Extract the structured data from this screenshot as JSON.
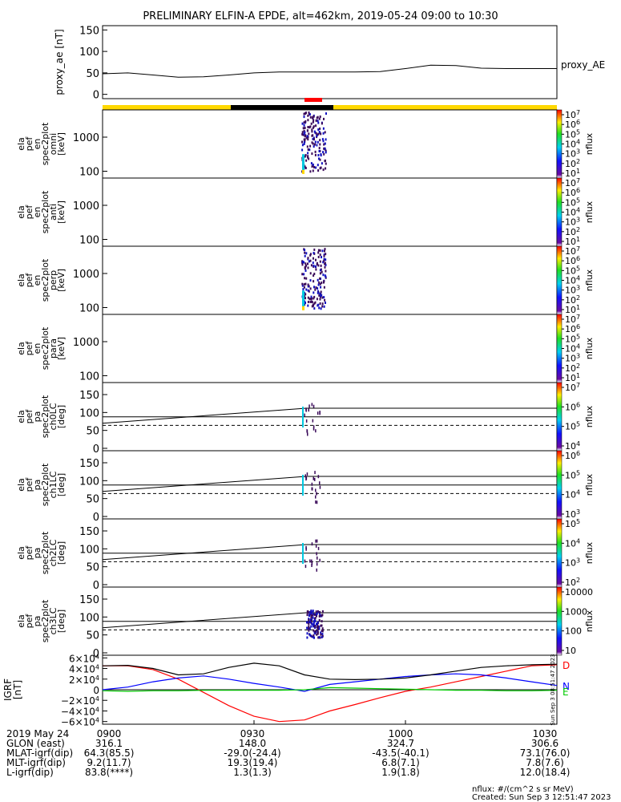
{
  "title": "PRELIMINARY ELFIN-A EPDE, alt=462km, 2019-05-24 09:00 to 10:30",
  "chart_data": [
    {
      "type": "line",
      "ylabel": "proxy_ae [nT]",
      "legend": "proxy_AE",
      "yticks": [
        "150",
        "100",
        "50",
        "0"
      ],
      "ylim": [
        -10,
        160
      ],
      "x": [
        0,
        5,
        10,
        15,
        20,
        25,
        30,
        35,
        40,
        45,
        50,
        55,
        60,
        65,
        70,
        75,
        80,
        85,
        90
      ],
      "values": [
        48,
        50,
        45,
        40,
        41,
        45,
        50,
        52,
        52,
        52,
        52,
        53,
        60,
        68,
        67,
        61,
        60,
        60,
        60
      ]
    },
    {
      "type": "heatmap",
      "ylabel_lines": [
        "ela",
        "pef",
        "en",
        "spec2plot",
        "omni",
        "[keV]"
      ],
      "yticks": [
        "1000",
        "100"
      ],
      "cbar_label": "nflux",
      "cbar_ticks": [
        "10^7",
        "10^6",
        "10^5",
        "10^4",
        "10^3",
        "10^2",
        "10^1"
      ]
    },
    {
      "type": "heatmap",
      "ylabel_lines": [
        "ela",
        "pef",
        "en",
        "spec2plot",
        "anti",
        "[keV]"
      ],
      "yticks": [
        "1000",
        "100"
      ],
      "cbar_label": "nflux",
      "cbar_ticks": [
        "10^7",
        "10^6",
        "10^5",
        "10^4",
        "10^3",
        "10^2",
        "10^1"
      ]
    },
    {
      "type": "heatmap",
      "ylabel_lines": [
        "ela",
        "pef",
        "en",
        "spec2plot",
        "perp",
        "[keV]"
      ],
      "yticks": [
        "1000",
        "100"
      ],
      "cbar_label": "nflux",
      "cbar_ticks": [
        "10^7",
        "10^6",
        "10^5",
        "10^4",
        "10^3",
        "10^2",
        "10^1"
      ]
    },
    {
      "type": "heatmap",
      "ylabel_lines": [
        "ela",
        "pef",
        "en",
        "spec2plot",
        "para",
        "[keV]"
      ],
      "yticks": [
        "1000",
        "100"
      ],
      "cbar_label": "nflux",
      "cbar_ticks": [
        "10^7",
        "10^6",
        "10^5",
        "10^4",
        "10^3",
        "10^2",
        "10^1"
      ]
    },
    {
      "type": "heatmap",
      "ylabel_lines": [
        "ela",
        "pef",
        "pa",
        "spec2plot",
        "ch0LC",
        "[deg]"
      ],
      "yticks": [
        "150",
        "100",
        "50",
        "0"
      ],
      "cbar_label": "nflux",
      "cbar_ticks": [
        "10^7",
        "10^6",
        "10^5",
        "10^4"
      ]
    },
    {
      "type": "heatmap",
      "ylabel_lines": [
        "ela",
        "pef",
        "pa",
        "spec2plot",
        "ch1LC",
        "[deg]"
      ],
      "yticks": [
        "150",
        "100",
        "50",
        "0"
      ],
      "cbar_label": "nflux",
      "cbar_ticks": [
        "10^6",
        "10^5",
        "10^4",
        "10^3"
      ]
    },
    {
      "type": "heatmap",
      "ylabel_lines": [
        "ela",
        "pef",
        "pa",
        "spec2plot",
        "ch2LC",
        "[deg]"
      ],
      "yticks": [
        "150",
        "100",
        "50",
        "0"
      ],
      "cbar_label": "nflux",
      "cbar_ticks": [
        "10^5",
        "10^4",
        "10^3",
        "10^2"
      ]
    },
    {
      "type": "heatmap",
      "ylabel_lines": [
        "ela",
        "pef",
        "pa",
        "spec2plot",
        "ch3LC",
        "[deg]"
      ],
      "yticks": [
        "150",
        "100",
        "50",
        "0"
      ],
      "cbar_label": "nflux",
      "cbar_ticks": [
        "10000",
        "1000",
        "100",
        "10"
      ]
    },
    {
      "type": "line",
      "ylabel": "IGRF [nT]",
      "yticks": [
        "6×10^4",
        "4×10^4",
        "2×10^4",
        "0",
        "−2×10^4",
        "−4×10^4",
        "−6×10^4"
      ],
      "ylim": [
        -65000,
        65000
      ],
      "x": [
        0,
        5,
        10,
        15,
        20,
        25,
        30,
        35,
        40,
        45,
        50,
        55,
        60,
        65,
        70,
        75,
        80,
        85,
        90
      ],
      "series": [
        {
          "name": "D",
          "color": "#ff0000",
          "values": [
            45000,
            45000,
            38000,
            20000,
            -5000,
            -30000,
            -50000,
            -60000,
            -57000,
            -40000,
            -28000,
            -15000,
            -3000,
            5000,
            15000,
            25000,
            35000,
            45000,
            47000
          ]
        },
        {
          "name": "N",
          "color": "#0000ff",
          "values": [
            0,
            5000,
            15000,
            22000,
            26000,
            20000,
            12000,
            5000,
            -3000,
            10000,
            15000,
            20000,
            25000,
            28000,
            30000,
            28000,
            22000,
            15000,
            8000
          ]
        },
        {
          "name": "E",
          "color": "#00cc00",
          "values": [
            -2000,
            -3000,
            -2000,
            -2000,
            -1000,
            -1000,
            -1000,
            -1000,
            0,
            4000,
            3000,
            2000,
            1000,
            0,
            -1000,
            -1000,
            -2000,
            -2000,
            -1000
          ]
        },
        {
          "name": "",
          "color": "#000000",
          "values": [
            45000,
            46000,
            40000,
            28000,
            30000,
            42000,
            50000,
            45000,
            28000,
            20000,
            19000,
            20000,
            22000,
            28000,
            35000,
            42000,
            45000,
            47000,
            48000
          ]
        }
      ]
    }
  ],
  "bottom": {
    "rows": [
      [
        "2019 May 24",
        "0900",
        "0930",
        "1000",
        "1030"
      ],
      [
        "GLON (east)",
        "316.1",
        "148.0",
        "324.7",
        "306.6"
      ],
      [
        "MLAT-igrf(dip)",
        "64.3(85.5)",
        "-29.0(-24.4)",
        "-43.5(-40.1)",
        "73.1(76.0)"
      ],
      [
        "MLT-igrf(dip)",
        "9.2(11.7)",
        "19.3(19.4)",
        "6.8(7.1)",
        "7.8(7.6)"
      ],
      [
        "L-igrf(dip)",
        "83.8(****)",
        "1.3(1.3)",
        "1.9(1.8)",
        "12.0(18.4)"
      ]
    ],
    "units_note": "nflux: #/(cm^2 s sr MeV)",
    "created": "Created: Sun Sep  3 12:51:47 2023"
  },
  "sidebar_vertical_text": "Sun Sep  3 08:51:47 2023"
}
